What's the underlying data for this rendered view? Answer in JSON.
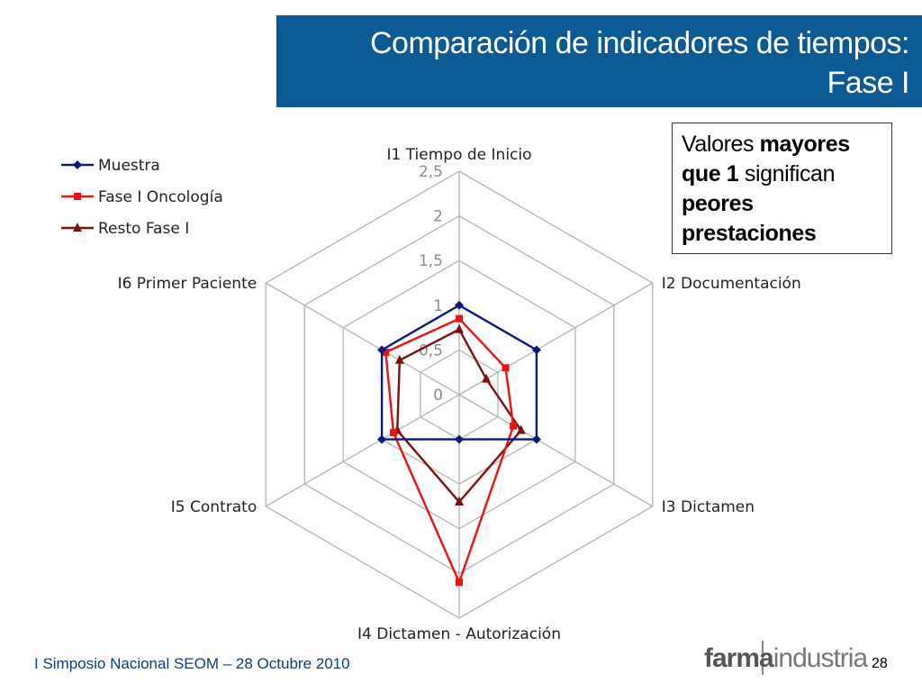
{
  "header": {
    "title_line1": "Comparación de indicadores de tiempos:",
    "title_line2": "Fase I"
  },
  "note": {
    "part1": "Valores ",
    "part2": "mayores que 1",
    "part3": " significan ",
    "part4": "peores prestaciones"
  },
  "footer": {
    "event": "I Simposio Nacional SEOM – 28 Octubre 2010",
    "logo_part1": "farma",
    "logo_part2": "industria",
    "page_number": "28"
  },
  "chart_data": {
    "type": "radar",
    "categories": [
      "I1 Tiempo de Inicio",
      "I2 Documentación",
      "I3 Dictamen",
      "I4 Dictamen - Autorización",
      "I5 Contrato",
      "I6 Primer Paciente"
    ],
    "ticks": [
      "0",
      "0,5",
      "1",
      "1,5",
      "2",
      "2,5"
    ],
    "rlim": [
      0,
      2.5
    ],
    "grid": true,
    "legend_position": "top-left",
    "series": [
      {
        "name": "Muestra",
        "color": "#0a1a7a",
        "marker": "diamond",
        "values": [
          1.0,
          1.0,
          1.0,
          0.5,
          1.0,
          1.0
        ]
      },
      {
        "name": "Fase I Oncología",
        "color": "#ee1111",
        "marker": "square",
        "values": [
          0.85,
          0.6,
          0.7,
          2.1,
          0.85,
          0.95
        ]
      },
      {
        "name": "Resto Fase I",
        "color": "#7a1010",
        "marker": "triangle",
        "values": [
          0.73,
          0.35,
          0.8,
          1.2,
          0.8,
          0.77
        ]
      }
    ]
  }
}
